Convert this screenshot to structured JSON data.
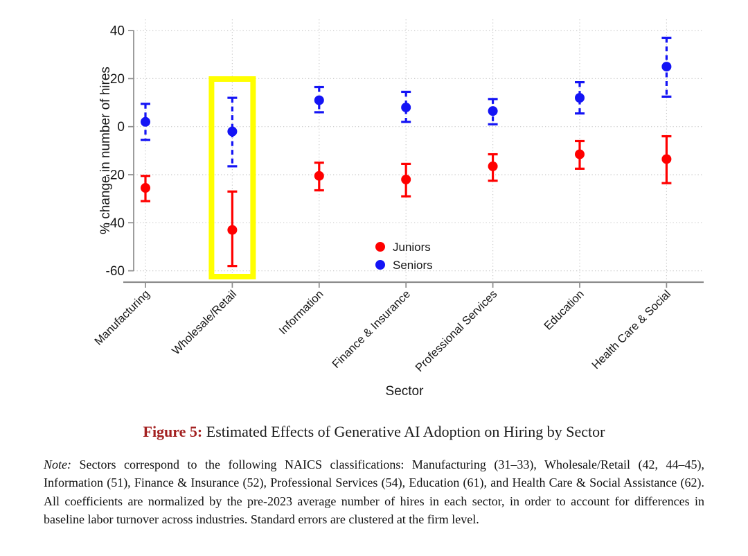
{
  "chart_data": {
    "type": "scatter",
    "subtype": "coefficient-plot-with-error-bars",
    "title": "",
    "xlabel": "Sector",
    "ylabel": "% change in number of hires",
    "ylim": [
      -60,
      40
    ],
    "yticks": [
      40,
      20,
      0,
      -20,
      -40,
      -60
    ],
    "grid": "dotted-both-axes",
    "categories": [
      "Manufacturing",
      "Wholesale/Retail",
      "Information",
      "Finance & Insurance",
      "Professional Services",
      "Education",
      "Health Care & Social"
    ],
    "series": [
      {
        "name": "Juniors",
        "color": "#ff0000",
        "line_style": "solid",
        "values": [
          -25.5,
          -43,
          -20.5,
          -22,
          -16.5,
          -11.5,
          -13.5
        ],
        "ci_low": [
          -31,
          -58,
          -26.5,
          -29,
          -22.5,
          -17.5,
          -23.5
        ],
        "ci_high": [
          -20.5,
          -27,
          -15,
          -15.5,
          -11.5,
          -6,
          -4
        ]
      },
      {
        "name": "Seniors",
        "color": "#1414f5",
        "line_style": "dashed",
        "values": [
          2,
          -2,
          11,
          8,
          6.5,
          12,
          25
        ],
        "ci_low": [
          -5.5,
          -16.5,
          6,
          2,
          1,
          5.5,
          12.5
        ],
        "ci_high": [
          9.5,
          12,
          16.5,
          14.5,
          11.5,
          18.5,
          37
        ]
      }
    ],
    "legend": {
      "position": "inside-lower-center",
      "entries": [
        {
          "label": "Juniors",
          "color": "#ff0000"
        },
        {
          "label": "Seniors",
          "color": "#1414f5"
        }
      ]
    },
    "highlight": {
      "category_index": 1,
      "category": "Wholesale/Retail",
      "color": "#ffff00"
    }
  },
  "caption": {
    "label": "Figure 5:",
    "label_color": "#a32020",
    "text": " Estimated Effects of Generative AI Adoption on Hiring by Sector"
  },
  "note": {
    "label": "Note:",
    "text": " Sectors correspond to the following NAICS classifications: Manufacturing (31–33), Wholesale/Retail (42, 44–45), Information (51), Finance & Insurance (52), Professional Services (54), Education (61), and Health Care & Social Assistance (62). All coefficients are normalized by the pre-2023 average number of hires in each sector, in order to account for differences in baseline labor turnover across industries. Standard errors are clustered at the firm level."
  }
}
